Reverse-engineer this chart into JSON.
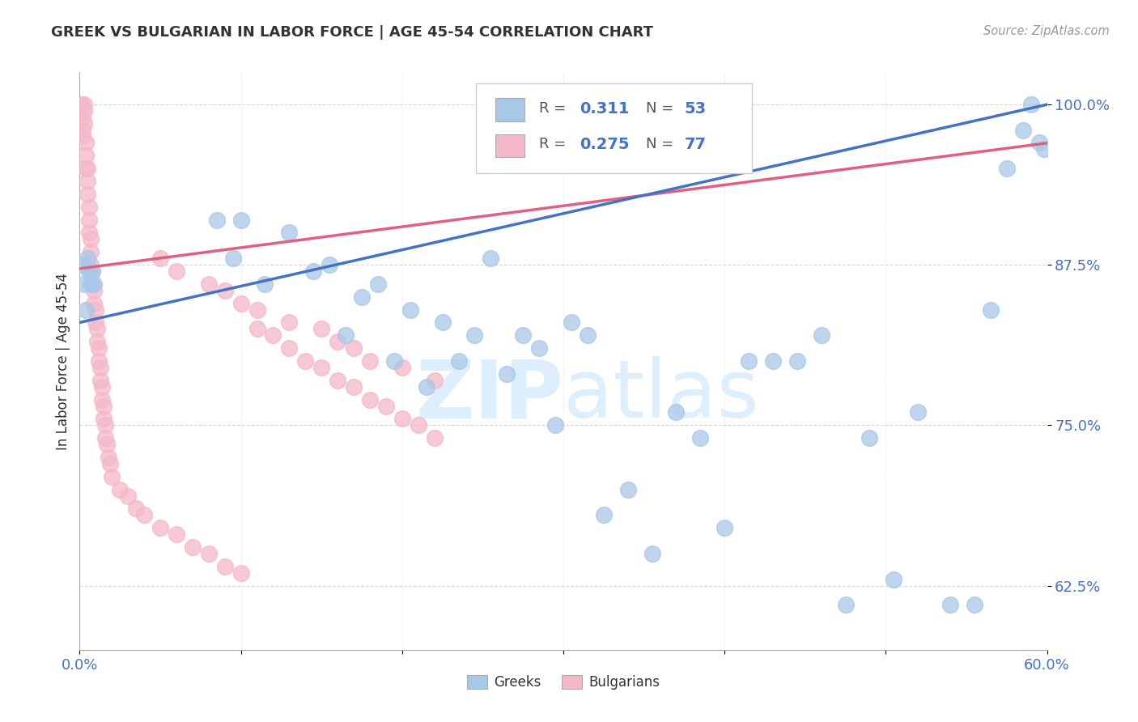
{
  "title": "GREEK VS BULGARIAN IN LABOR FORCE | AGE 45-54 CORRELATION CHART",
  "source": "Source: ZipAtlas.com",
  "ylabel": "In Labor Force | Age 45-54",
  "xlim": [
    0.0,
    0.6
  ],
  "ylim": [
    0.575,
    1.025
  ],
  "yticks": [
    0.625,
    0.75,
    0.875,
    1.0
  ],
  "yticklabels": [
    "62.5%",
    "75.0%",
    "87.5%",
    "100.0%"
  ],
  "xticks": [
    0.0,
    0.1,
    0.2,
    0.3,
    0.4,
    0.5,
    0.6
  ],
  "xticklabels": [
    "0.0%",
    "",
    "",
    "",
    "",
    "",
    "60.0%"
  ],
  "greek_color": "#a8c8e8",
  "bulgarian_color": "#f5b8c8",
  "greek_line_color": "#4472c4",
  "bulgarian_line_color": "#e06080",
  "watermark_color": "#ddeeff",
  "R_greek": 0.311,
  "N_greek": 53,
  "R_bulgarian": 0.275,
  "N_bulgarian": 77,
  "greek_intercept": 0.83,
  "greek_slope": 0.283,
  "bulgarian_intercept": 0.872,
  "bulgarian_slope": 0.163,
  "greek_x": [
    0.002,
    0.003,
    0.004,
    0.005,
    0.006,
    0.007,
    0.008,
    0.009,
    0.085,
    0.095,
    0.1,
    0.115,
    0.13,
    0.145,
    0.155,
    0.165,
    0.175,
    0.185,
    0.195,
    0.205,
    0.215,
    0.225,
    0.235,
    0.245,
    0.255,
    0.265,
    0.275,
    0.285,
    0.295,
    0.305,
    0.315,
    0.325,
    0.34,
    0.355,
    0.37,
    0.385,
    0.4,
    0.415,
    0.43,
    0.445,
    0.46,
    0.475,
    0.49,
    0.505,
    0.52,
    0.54,
    0.555,
    0.565,
    0.575,
    0.585,
    0.59,
    0.595,
    0.598
  ],
  "greek_y": [
    0.875,
    0.86,
    0.84,
    0.88,
    0.87,
    0.86,
    0.87,
    0.86,
    0.91,
    0.88,
    0.91,
    0.86,
    0.9,
    0.87,
    0.875,
    0.82,
    0.85,
    0.86,
    0.8,
    0.84,
    0.78,
    0.83,
    0.8,
    0.82,
    0.88,
    0.79,
    0.82,
    0.81,
    0.75,
    0.83,
    0.82,
    0.68,
    0.7,
    0.65,
    0.76,
    0.74,
    0.67,
    0.8,
    0.8,
    0.8,
    0.82,
    0.61,
    0.74,
    0.63,
    0.76,
    0.61,
    0.61,
    0.84,
    0.95,
    0.98,
    1.0,
    0.97,
    0.965
  ],
  "bulgarian_x": [
    0.001,
    0.001,
    0.002,
    0.002,
    0.002,
    0.003,
    0.003,
    0.003,
    0.004,
    0.004,
    0.004,
    0.005,
    0.005,
    0.005,
    0.006,
    0.006,
    0.006,
    0.007,
    0.007,
    0.007,
    0.008,
    0.008,
    0.009,
    0.009,
    0.01,
    0.01,
    0.011,
    0.011,
    0.012,
    0.012,
    0.013,
    0.013,
    0.014,
    0.014,
    0.015,
    0.015,
    0.016,
    0.016,
    0.017,
    0.018,
    0.019,
    0.02,
    0.025,
    0.03,
    0.035,
    0.04,
    0.05,
    0.06,
    0.07,
    0.08,
    0.09,
    0.1,
    0.11,
    0.12,
    0.13,
    0.14,
    0.15,
    0.16,
    0.17,
    0.18,
    0.19,
    0.2,
    0.21,
    0.22,
    0.05,
    0.06,
    0.08,
    0.09,
    0.1,
    0.11,
    0.13,
    0.15,
    0.16,
    0.17,
    0.18,
    0.2,
    0.22
  ],
  "bulgarian_y": [
    1.0,
    1.0,
    0.99,
    0.98,
    0.975,
    1.0,
    0.995,
    0.985,
    0.97,
    0.96,
    0.95,
    0.95,
    0.94,
    0.93,
    0.92,
    0.91,
    0.9,
    0.895,
    0.885,
    0.875,
    0.87,
    0.86,
    0.855,
    0.845,
    0.84,
    0.83,
    0.825,
    0.815,
    0.81,
    0.8,
    0.795,
    0.785,
    0.78,
    0.77,
    0.765,
    0.755,
    0.75,
    0.74,
    0.735,
    0.725,
    0.72,
    0.71,
    0.7,
    0.695,
    0.685,
    0.68,
    0.67,
    0.665,
    0.655,
    0.65,
    0.64,
    0.635,
    0.825,
    0.82,
    0.81,
    0.8,
    0.795,
    0.785,
    0.78,
    0.77,
    0.765,
    0.755,
    0.75,
    0.74,
    0.88,
    0.87,
    0.86,
    0.855,
    0.845,
    0.84,
    0.83,
    0.825,
    0.815,
    0.81,
    0.8,
    0.795,
    0.785
  ]
}
